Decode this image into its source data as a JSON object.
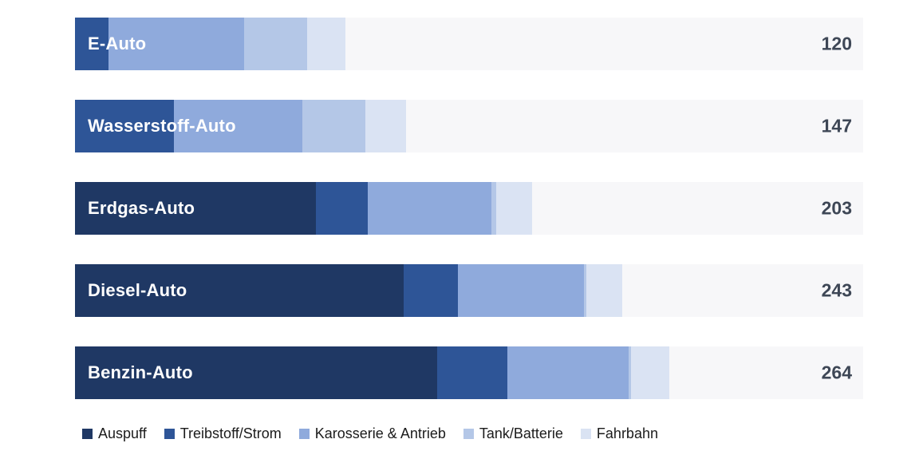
{
  "chart_data": {
    "type": "bar",
    "orientation": "horizontal",
    "stacked": true,
    "title": "",
    "xlabel": "",
    "ylabel": "",
    "grid": false,
    "legend_position": "bottom",
    "xlim": [
      0,
      350
    ],
    "track_color": "#f7f7f9",
    "value_label_color": "#3e4756",
    "categories": [
      "E-Auto",
      "Wasserstoff-Auto",
      "Erdgas-Auto",
      "Diesel-Auto",
      "Benzin-Auto"
    ],
    "totals": [
      120,
      147,
      203,
      243,
      264
    ],
    "series": [
      {
        "name": "Auspuff",
        "color": "#1f3864",
        "values": [
          0,
          0,
          107,
          146,
          161
        ]
      },
      {
        "name": "Treibstoff/Strom",
        "color": "#2e5597",
        "values": [
          15,
          44,
          23,
          24,
          31
        ]
      },
      {
        "name": "Karosserie & Antrieb",
        "color": "#8faadc",
        "values": [
          60,
          57,
          55,
          56,
          54
        ]
      },
      {
        "name": "Tank/Batterie",
        "color": "#b4c7e7",
        "values": [
          28,
          28,
          2,
          1,
          1
        ]
      },
      {
        "name": "Fahrbahn",
        "color": "#dae3f3",
        "values": [
          17,
          18,
          16,
          16,
          17
        ]
      }
    ]
  }
}
